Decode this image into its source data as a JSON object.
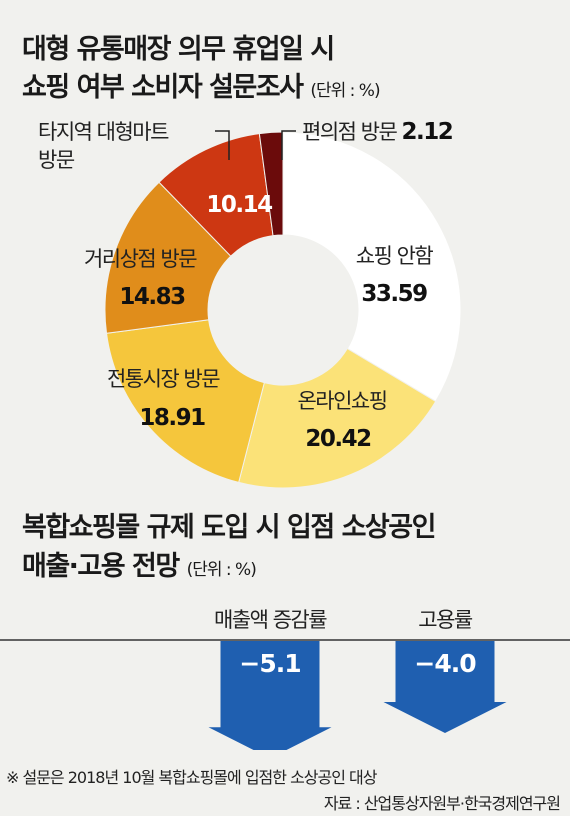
{
  "chart1": {
    "title_line1": "대형 유통매장 의무 휴업일 시",
    "title_line2": "쇼핑 여부 소비자 설문조사",
    "unit": "(단위 : %)"
  },
  "chart2": {
    "title_line1": "복합쇼핑몰 규제 도입 시 입점 소상공인",
    "title_line2": "매출·고용 전망",
    "unit": "(단위 : %)"
  },
  "chart_data": [
    {
      "type": "pie",
      "title": "대형 유통매장 의무 휴업일 시 쇼핑 여부 소비자 설문조사",
      "unit": "%",
      "slices": [
        {
          "label": "쇼핑 안함",
          "value": 33.59,
          "color": "#ffffff"
        },
        {
          "label": "온라인쇼핑",
          "value": 20.42,
          "color": "#fbe278"
        },
        {
          "label": "전통시장 방문",
          "value": 18.91,
          "color": "#f5c63c"
        },
        {
          "label": "거리상점 방문",
          "value": 14.83,
          "color": "#e08d1b"
        },
        {
          "label": "타지역 대형마트 방문",
          "value": 10.14,
          "color": "#cd3712"
        },
        {
          "label": "편의점 방문",
          "value": 2.12,
          "color": "#6b0b0b"
        }
      ],
      "value_labels": [
        "33.59",
        "20.42",
        "18.91",
        "14.83",
        "10.14",
        "2.12"
      ]
    },
    {
      "type": "bar",
      "title": "복합쇼핑몰 규제 도입 시 입점 소상공인 매출·고용 전망",
      "unit": "%",
      "categories": [
        "매출액 증감률",
        "고용률"
      ],
      "values": [
        -5.1,
        -4.0
      ],
      "value_labels": [
        "−5.1",
        "−4.0"
      ],
      "color": "#1f5fb0"
    }
  ],
  "footnote": "※ 설문은 2018년 10월 복합쇼핑몰에 입점한 소상공인 대상",
  "source": "자료 : 산업통상자원부·한국경제연구원"
}
